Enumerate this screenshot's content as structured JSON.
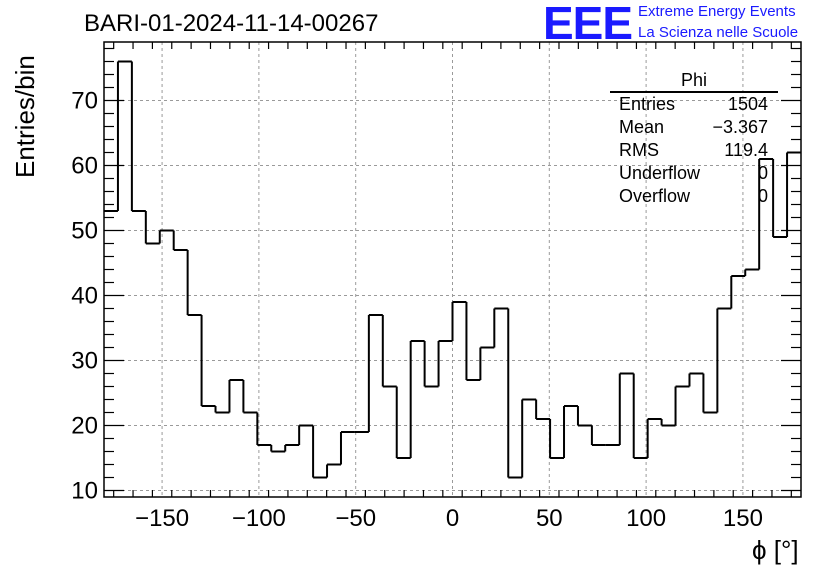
{
  "title": "BARI-01-2024-11-14-00267",
  "logo": {
    "mark": "EEE",
    "line1": "Extreme Energy Events",
    "line2": "La Scienza nelle Scuole"
  },
  "stats": {
    "name": "Phi",
    "rows": [
      {
        "label": "Entries",
        "value": "1504"
      },
      {
        "label": "Mean",
        "value": "−3.367"
      },
      {
        "label": "RMS",
        "value": "119.4"
      },
      {
        "label": "Underflow",
        "value": "0"
      },
      {
        "label": "Overflow",
        "value": "0"
      }
    ]
  },
  "colors": {
    "line": "#000000",
    "grid": "#9a9a9a",
    "accent": "#1a1aff"
  },
  "chart_data": {
    "type": "histogram",
    "ylabel": "Entries/bin",
    "xlabel": "ϕ [°]",
    "xlim": [
      -180,
      180
    ],
    "ylim": [
      9,
      79
    ],
    "grid": true,
    "xticks": [
      -150,
      -100,
      -50,
      0,
      50,
      100,
      150
    ],
    "xtick_labels": [
      "−150",
      "−100",
      "−50",
      "0",
      "50",
      "100",
      "150"
    ],
    "yticks": [
      10,
      20,
      30,
      40,
      50,
      60,
      70
    ],
    "bin_width": 7.2,
    "values": [
      53,
      76,
      53,
      48,
      50,
      47,
      37,
      23,
      22,
      27,
      22,
      17,
      16,
      17,
      20,
      12,
      14,
      19,
      19,
      37,
      26,
      15,
      33,
      26,
      33,
      39,
      27,
      32,
      38,
      12,
      24,
      21,
      15,
      23,
      20,
      17,
      17,
      28,
      15,
      21,
      20,
      26,
      28,
      22,
      38,
      43,
      44,
      61,
      49,
      62
    ]
  }
}
